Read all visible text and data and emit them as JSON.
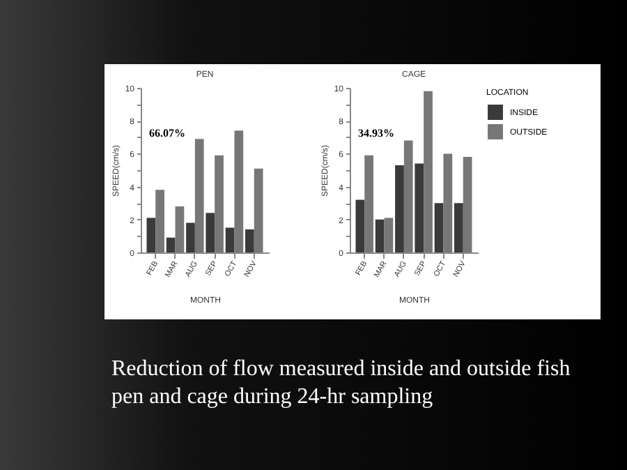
{
  "chart_data": [
    {
      "type": "bar",
      "title": "PEN",
      "xlabel": "MONTH",
      "ylabel": "SPEED(cm/s)",
      "categories": [
        "FEB",
        "MAR",
        "AUG",
        "SEP",
        "OCT",
        "NOV"
      ],
      "series": [
        {
          "color": "#3a3a3a",
          "values": [
            2.1,
            0.9,
            1.8,
            2.4,
            1.5,
            1.4
          ]
        },
        {
          "color": "#777777",
          "values": [
            3.8,
            2.8,
            6.9,
            5.9,
            7.4,
            5.1
          ]
        }
      ],
      "ylim": [
        0,
        10
      ],
      "yticks": [
        0,
        {
          "value": 1,
          "label": null
        },
        2,
        {
          "value": 3,
          "label": null
        },
        4,
        {
          "value": 5,
          "label": null
        },
        6,
        {
          "value": 7,
          "label": null
        },
        8,
        {
          "value": 9,
          "label": null
        },
        10
      ],
      "annotations": [
        "66.07%",
        "Reduction of flow measured inside and outside fish pen and cage during 24-hr sampling"
      ]
    },
    {
      "type": "bar",
      "title": "CAGE",
      "xlabel": "MONTH",
      "ylabel": "SPEED(cm/s)",
      "categories": [
        "FEB",
        "MAR",
        "AUG",
        "SEP",
        "OCT",
        "NOV"
      ],
      "series": [
        {
          "name": "INSIDE",
          "color": "#3a3a3a",
          "values": [
            3.2,
            2.0,
            5.3,
            5.4,
            3.0,
            3.0
          ]
        },
        {
          "name": "OUTSIDE",
          "color": "#777777",
          "values": [
            5.9,
            2.1,
            6.8,
            9.8,
            6.0,
            5.8
          ]
        }
      ],
      "ylim": [
        0,
        10
      ],
      "yticks": [
        0,
        {
          "value": 1,
          "label": null
        },
        2,
        {
          "value": 3,
          "label": null
        },
        4,
        {
          "value": 5,
          "label": null
        },
        6,
        {
          "value": 7,
          "label": null
        },
        8,
        {
          "value": 9,
          "label": null
        },
        10
      ],
      "legend": "right",
      "legend_title": "LOCATION",
      "annotations": [
        "34.93%"
      ]
    }
  ]
}
